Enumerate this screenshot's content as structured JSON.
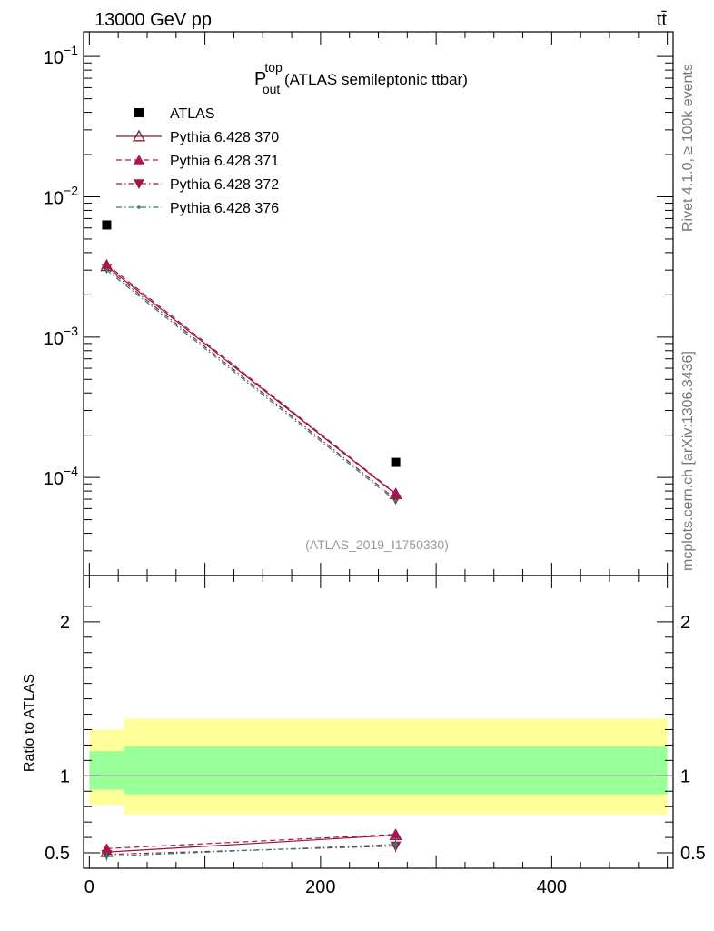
{
  "header": {
    "left": "13000 GeV pp",
    "right": "tt̄"
  },
  "side": {
    "right_top": "Rivet 4.1.0, ≥ 100k events",
    "right_bottom": "mcplots.cern.ch [arXiv:1306.3436]"
  },
  "title": {
    "main": "P",
    "sup": "top",
    "sub": "out",
    "rest": " (ATLAS semileptonic ttbar)"
  },
  "watermark": "(ATLAS_2019_I1750330)",
  "ratio_ylabel": "Ratio to ATLAS",
  "colors": {
    "data": "#000000",
    "p370": "#8b1a2b",
    "p371": "#b0105a",
    "p372": "#a01a40",
    "p376": "#1a8a7a",
    "band_inner": "#99ff99",
    "band_outer": "#ffff99"
  },
  "chart_data": [
    {
      "type": "scatter",
      "panel": "main",
      "title": "P_out^top (ATLAS semileptonic ttbar)",
      "yscale": "log",
      "xlim": [
        -5,
        505
      ],
      "ylim": [
        2e-05,
        0.15
      ],
      "yticks": [
        {
          "v": 0.1,
          "m": "10",
          "e": "−1"
        },
        {
          "v": 0.01,
          "m": "10",
          "e": "−2"
        },
        {
          "v": 0.001,
          "m": "10",
          "e": "−3"
        },
        {
          "v": 0.0001,
          "m": "10",
          "e": "−4"
        }
      ],
      "series": [
        {
          "key": "atlas",
          "name": "ATLAS",
          "marker": "square",
          "x": [
            15,
            265
          ],
          "values": [
            0.0063,
            0.000128
          ]
        },
        {
          "key": "p370",
          "name": "Pythia 6.428 370",
          "marker": "triangle-open",
          "line": "solid",
          "x": [
            15,
            265
          ],
          "values": [
            0.0032,
            7.6e-05
          ]
        },
        {
          "key": "p371",
          "name": "Pythia 6.428 371",
          "marker": "triangle-up",
          "line": "dashed",
          "x": [
            15,
            265
          ],
          "values": [
            0.0033,
            7.7e-05
          ]
        },
        {
          "key": "p372",
          "name": "Pythia 6.428 372",
          "marker": "triangle-down",
          "line": "dashdot",
          "x": [
            15,
            265
          ],
          "values": [
            0.0031,
            7e-05
          ]
        },
        {
          "key": "p376",
          "name": "Pythia 6.428 376",
          "marker": "dot",
          "line": "dashdot",
          "x": [
            15,
            265
          ],
          "values": [
            0.003,
            6.8e-05
          ]
        }
      ],
      "legend": "top-left"
    },
    {
      "type": "line",
      "panel": "ratio",
      "ylabel": "Ratio to ATLAS",
      "xlim": [
        -5,
        505
      ],
      "ylim": [
        0.4,
        2.3
      ],
      "xticks": [
        0,
        200,
        400
      ],
      "yticks": [
        0.5,
        1,
        2
      ],
      "bands": [
        {
          "x": [
            0,
            30
          ],
          "inner": [
            0.91,
            1.16
          ],
          "outer": [
            0.81,
            1.3
          ]
        },
        {
          "x": [
            30,
            500
          ],
          "inner": [
            0.88,
            1.19
          ],
          "outer": [
            0.75,
            1.37
          ]
        }
      ],
      "series": [
        {
          "key": "p370",
          "name": "Pythia 6.428 370",
          "x": [
            15,
            265
          ],
          "values": [
            0.505,
            0.615
          ],
          "err": [
            0.02,
            0.03
          ]
        },
        {
          "key": "p371",
          "name": "Pythia 6.428 371",
          "x": [
            15,
            265
          ],
          "values": [
            0.528,
            0.62
          ],
          "err": [
            0.02,
            0.03
          ]
        },
        {
          "key": "p372",
          "name": "Pythia 6.428 372",
          "x": [
            15,
            265
          ],
          "values": [
            0.49,
            0.545
          ],
          "err": [
            0.03,
            0.04
          ]
        },
        {
          "key": "p376",
          "name": "Pythia 6.428 376",
          "x": [
            15,
            265
          ],
          "values": [
            0.478,
            0.555
          ],
          "err": [
            0.03,
            0.04
          ]
        }
      ]
    }
  ]
}
